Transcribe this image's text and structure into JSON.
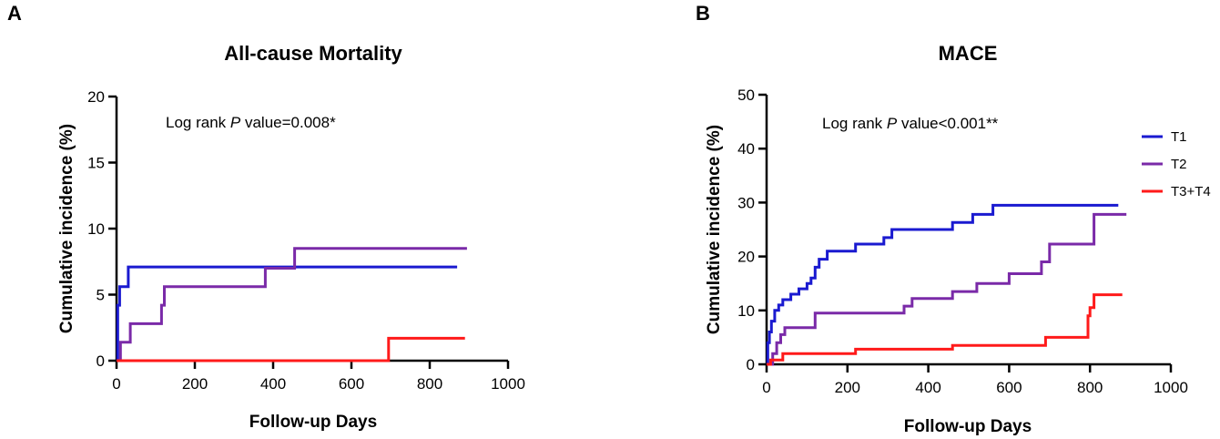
{
  "chart_data": [
    {
      "type": "line",
      "panel": "A",
      "title": "All-cause Mortality",
      "xlabel": "Follow-up Days",
      "ylabel": "Cumulative incidence (%)",
      "xlim": [
        0,
        1000
      ],
      "ylim": [
        0,
        20
      ],
      "xticks": [
        0,
        200,
        400,
        600,
        800,
        1000
      ],
      "yticks": [
        0,
        5,
        10,
        15,
        20
      ],
      "annotation": {
        "prefix": "Log rank ",
        "italic": "P",
        "suffix": " value=0.008*"
      },
      "series": [
        {
          "name": "T1",
          "color": "#1a1ad0",
          "steps": [
            [
              0,
              0
            ],
            [
              3,
              4.2
            ],
            [
              8,
              5.6
            ],
            [
              30,
              7.1
            ],
            [
              870,
              7.1
            ]
          ]
        },
        {
          "name": "T2",
          "color": "#7a2aa8",
          "steps": [
            [
              0,
              0
            ],
            [
              10,
              1.4
            ],
            [
              35,
              2.8
            ],
            [
              115,
              4.2
            ],
            [
              122,
              5.6
            ],
            [
              380,
              7.0
            ],
            [
              455,
              8.5
            ],
            [
              895,
              8.5
            ]
          ]
        },
        {
          "name": "T3+T4",
          "color": "#ff1a1a",
          "steps": [
            [
              0,
              0
            ],
            [
              695,
              1.7
            ],
            [
              890,
              1.7
            ]
          ]
        }
      ]
    },
    {
      "type": "line",
      "panel": "B",
      "title": "MACE",
      "xlabel": "Follow-up Days",
      "ylabel": "Cumulative incidence (%)",
      "xlim": [
        0,
        1000
      ],
      "ylim": [
        0,
        50
      ],
      "xticks": [
        0,
        200,
        400,
        600,
        800,
        1000
      ],
      "yticks": [
        0,
        10,
        20,
        30,
        40,
        50
      ],
      "annotation": {
        "prefix": "Log rank ",
        "italic": "P",
        "suffix": " value<0.001**"
      },
      "legend": {
        "position": "top-right",
        "entries": [
          "T1",
          "T2",
          "T3+T4"
        ]
      },
      "series": [
        {
          "name": "T1",
          "color": "#1a1ad0",
          "steps": [
            [
              0,
              0
            ],
            [
              3,
              4
            ],
            [
              7,
              6
            ],
            [
              12,
              8
            ],
            [
              20,
              10
            ],
            [
              30,
              11
            ],
            [
              40,
              12
            ],
            [
              60,
              13
            ],
            [
              80,
              14
            ],
            [
              100,
              15
            ],
            [
              110,
              16
            ],
            [
              120,
              18
            ],
            [
              130,
              19.5
            ],
            [
              150,
              21
            ],
            [
              220,
              22.3
            ],
            [
              290,
              23.5
            ],
            [
              310,
              25
            ],
            [
              460,
              26.3
            ],
            [
              510,
              27.8
            ],
            [
              560,
              29.5
            ],
            [
              870,
              29.5
            ]
          ]
        },
        {
          "name": "T2",
          "color": "#7a2aa8",
          "steps": [
            [
              0,
              0
            ],
            [
              15,
              2
            ],
            [
              25,
              4
            ],
            [
              35,
              5.5
            ],
            [
              45,
              6.8
            ],
            [
              120,
              9.5
            ],
            [
              340,
              10.8
            ],
            [
              360,
              12.2
            ],
            [
              460,
              13.5
            ],
            [
              520,
              15
            ],
            [
              600,
              16.8
            ],
            [
              680,
              19
            ],
            [
              700,
              22.3
            ],
            [
              810,
              27.8
            ],
            [
              890,
              27.8
            ]
          ]
        },
        {
          "name": "T3+T4",
          "color": "#ff1a1a",
          "steps": [
            [
              0,
              0
            ],
            [
              10,
              0.8
            ],
            [
              40,
              2
            ],
            [
              220,
              2.8
            ],
            [
              460,
              3.5
            ],
            [
              690,
              5
            ],
            [
              795,
              9
            ],
            [
              800,
              10.5
            ],
            [
              810,
              12.9
            ],
            [
              880,
              12.9
            ]
          ]
        }
      ]
    }
  ]
}
